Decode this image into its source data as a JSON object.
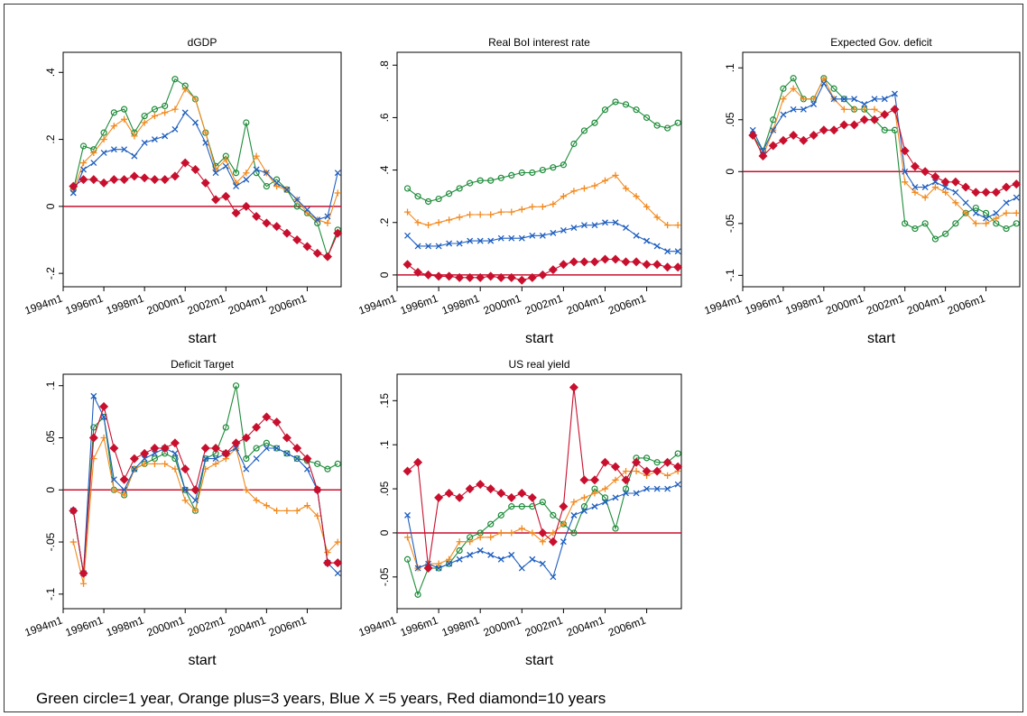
{
  "note": "Green circle=1 year, Orange plus=3 years, Blue X =5 years, Red diamond=10 years",
  "chart_data": [
    {
      "type": "line",
      "title": "dGDP",
      "xlabel": "start",
      "x": [
        "1994m7",
        "1995m1",
        "1995m7",
        "1996m1",
        "1996m7",
        "1997m1",
        "1997m7",
        "1998m1",
        "1998m7",
        "1999m1",
        "1999m7",
        "2000m1",
        "2000m7",
        "2001m1",
        "2001m7",
        "2002m1",
        "2002m7",
        "2003m1",
        "2003m7",
        "2004m1",
        "2004m7",
        "2005m1",
        "2005m7",
        "2006m1",
        "2006m7",
        "2007m1",
        "2007m7"
      ],
      "xlim": [
        "1994m1",
        "2007m9"
      ],
      "xticks": [
        "1994m1",
        "1996m1",
        "1998m1",
        "2000m1",
        "2002m1",
        "2004m1",
        "2006m1"
      ],
      "ylim": [
        -0.24,
        0.46
      ],
      "yticks": [
        {
          "value": -0.2,
          "label": "-.2"
        },
        0,
        {
          "value": 0.2,
          "label": ".2"
        },
        {
          "value": 0.4,
          "label": ".4"
        }
      ],
      "yline": 0,
      "yline_color": "#c8102e",
      "series": [
        {
          "color": "#1e8c3a",
          "marker": "circle",
          "values": [
            0.05,
            0.18,
            0.17,
            0.22,
            0.28,
            0.29,
            0.22,
            0.27,
            0.29,
            0.3,
            0.38,
            0.36,
            0.32,
            0.22,
            0.12,
            0.15,
            0.1,
            0.25,
            0.1,
            0.06,
            0.08,
            0.05,
            0,
            -0.02,
            -0.05,
            -0.15,
            -0.07
          ]
        },
        {
          "color": "#f28a1e",
          "marker": "plus",
          "values": [
            0.05,
            0.13,
            0.16,
            0.2,
            0.24,
            0.26,
            0.21,
            0.25,
            0.27,
            0.28,
            0.29,
            0.35,
            0.32,
            0.22,
            0.11,
            0.14,
            0.07,
            0.1,
            0.15,
            0.1,
            0.06,
            0.05,
            0.02,
            -0.02,
            -0.04,
            -0.05,
            0.04
          ]
        },
        {
          "color": "#1f5fbf",
          "marker": "x",
          "values": [
            0.04,
            0.11,
            0.13,
            0.16,
            0.17,
            0.17,
            0.15,
            0.19,
            0.2,
            0.21,
            0.23,
            0.28,
            0.25,
            0.19,
            0.1,
            0.12,
            0.06,
            0.08,
            0.11,
            0.1,
            0.07,
            0.05,
            0.02,
            -0.01,
            -0.04,
            -0.03,
            0.1
          ]
        },
        {
          "color": "#c8102e",
          "marker": "diamond",
          "values": [
            0.06,
            0.08,
            0.08,
            0.07,
            0.08,
            0.08,
            0.09,
            0.085,
            0.08,
            0.08,
            0.09,
            0.13,
            0.11,
            0.07,
            0.02,
            0.03,
            -0.02,
            0,
            -0.03,
            -0.05,
            -0.06,
            -0.08,
            -0.1,
            -0.12,
            -0.14,
            -0.15,
            -0.08
          ]
        }
      ]
    },
    {
      "type": "line",
      "title": "Real BoI interest rate",
      "xlabel": "start",
      "x": [
        "1994m7",
        "1995m1",
        "1995m7",
        "1996m1",
        "1996m7",
        "1997m1",
        "1997m7",
        "1998m1",
        "1998m7",
        "1999m1",
        "1999m7",
        "2000m1",
        "2000m7",
        "2001m1",
        "2001m7",
        "2002m1",
        "2002m7",
        "2003m1",
        "2003m7",
        "2004m1",
        "2004m7",
        "2005m1",
        "2005m7",
        "2006m1",
        "2006m7",
        "2007m1",
        "2007m7"
      ],
      "xlim": [
        "1994m1",
        "2007m9"
      ],
      "xticks": [
        "1994m1",
        "1996m1",
        "1998m1",
        "2000m1",
        "2002m1",
        "2004m1",
        "2006m1"
      ],
      "ylim": [
        -0.045,
        0.849
      ],
      "yticks": [
        0,
        {
          "value": 0.2,
          "label": ".2"
        },
        {
          "value": 0.4,
          "label": ".4"
        },
        {
          "value": 0.6,
          "label": ".6"
        },
        {
          "value": 0.8,
          "label": ".8"
        }
      ],
      "yline": 0,
      "yline_color": "#c8102e",
      "series": [
        {
          "color": "#1e8c3a",
          "marker": "circle",
          "values": [
            0.33,
            0.3,
            0.28,
            0.29,
            0.31,
            0.33,
            0.35,
            0.36,
            0.36,
            0.37,
            0.38,
            0.39,
            0.39,
            0.4,
            0.41,
            0.42,
            0.5,
            0.55,
            0.58,
            0.63,
            0.66,
            0.65,
            0.63,
            0.6,
            0.57,
            0.56,
            0.58
          ]
        },
        {
          "color": "#f28a1e",
          "marker": "plus",
          "values": [
            0.24,
            0.2,
            0.19,
            0.2,
            0.21,
            0.22,
            0.23,
            0.23,
            0.23,
            0.24,
            0.24,
            0.25,
            0.26,
            0.26,
            0.27,
            0.3,
            0.32,
            0.33,
            0.34,
            0.36,
            0.38,
            0.33,
            0.3,
            0.26,
            0.22,
            0.19,
            0.19
          ]
        },
        {
          "color": "#1f5fbf",
          "marker": "x",
          "values": [
            0.15,
            0.11,
            0.11,
            0.11,
            0.12,
            0.12,
            0.13,
            0.13,
            0.13,
            0.14,
            0.14,
            0.14,
            0.15,
            0.15,
            0.16,
            0.17,
            0.18,
            0.19,
            0.19,
            0.2,
            0.2,
            0.18,
            0.15,
            0.13,
            0.11,
            0.09,
            0.09
          ]
        },
        {
          "color": "#c8102e",
          "marker": "diamond",
          "values": [
            0.04,
            0.01,
            0,
            -0.005,
            -0.005,
            -0.01,
            -0.01,
            -0.01,
            -0.005,
            -0.01,
            -0.01,
            -0.02,
            -0.01,
            0,
            0.02,
            0.04,
            0.05,
            0.05,
            0.05,
            0.06,
            0.06,
            0.05,
            0.05,
            0.04,
            0.04,
            0.03,
            0.03
          ]
        }
      ]
    },
    {
      "type": "line",
      "title": "Expected Gov. deficit",
      "xlabel": "start",
      "x": [
        "1994m7",
        "1995m1",
        "1995m7",
        "1996m1",
        "1996m7",
        "1997m1",
        "1997m7",
        "1998m1",
        "1998m7",
        "1999m1",
        "1999m7",
        "2000m1",
        "2000m7",
        "2001m1",
        "2001m7",
        "2002m1",
        "2002m7",
        "2003m1",
        "2003m7",
        "2004m1",
        "2004m7",
        "2005m1",
        "2005m7",
        "2006m1",
        "2006m7",
        "2007m1",
        "2007m7"
      ],
      "xlim": [
        "1994m1",
        "2007m9"
      ],
      "xticks": [
        "1994m1",
        "1996m1",
        "1998m1",
        "2000m1",
        "2002m1",
        "2004m1",
        "2006m1"
      ],
      "ylim": [
        -0.111,
        0.115
      ],
      "yticks": [
        {
          "value": -0.1,
          "label": "-.1"
        },
        {
          "value": -0.05,
          "label": "-.05"
        },
        0,
        {
          "value": 0.05,
          "label": ".05"
        },
        {
          "value": 0.1,
          "label": ".1"
        }
      ],
      "yline": 0,
      "yline_color": "#c8102e",
      "series": [
        {
          "color": "#1e8c3a",
          "marker": "circle",
          "values": [
            0.035,
            0.02,
            0.05,
            0.08,
            0.09,
            0.07,
            0.07,
            0.09,
            0.08,
            0.07,
            0.06,
            0.06,
            0.05,
            0.04,
            0.04,
            -0.05,
            -0.055,
            -0.05,
            -0.065,
            -0.06,
            -0.05,
            -0.04,
            -0.035,
            -0.04,
            -0.05,
            -0.055,
            -0.05
          ]
        },
        {
          "color": "#f28a1e",
          "marker": "plus",
          "values": [
            0.035,
            0.015,
            0.04,
            0.07,
            0.08,
            0.07,
            0.07,
            0.09,
            0.07,
            0.06,
            0.06,
            0.06,
            0.06,
            0.055,
            0.06,
            -0.01,
            -0.02,
            -0.025,
            -0.015,
            -0.02,
            -0.03,
            -0.04,
            -0.05,
            -0.05,
            -0.045,
            -0.04,
            -0.04
          ]
        },
        {
          "color": "#1f5fbf",
          "marker": "x",
          "values": [
            0.04,
            0.02,
            0.04,
            0.055,
            0.06,
            0.06,
            0.065,
            0.085,
            0.07,
            0.07,
            0.07,
            0.065,
            0.07,
            0.07,
            0.075,
            0,
            -0.015,
            -0.015,
            -0.01,
            -0.015,
            -0.02,
            -0.03,
            -0.04,
            -0.045,
            -0.04,
            -0.03,
            -0.025
          ]
        },
        {
          "color": "#c8102e",
          "marker": "diamond",
          "values": [
            0.035,
            0.015,
            0.025,
            0.03,
            0.035,
            0.03,
            0.035,
            0.04,
            0.04,
            0.045,
            0.045,
            0.05,
            0.05,
            0.055,
            0.06,
            0.02,
            0.005,
            0,
            -0.005,
            -0.01,
            -0.01,
            -0.015,
            -0.02,
            -0.02,
            -0.02,
            -0.015,
            -0.012
          ]
        }
      ]
    },
    {
      "type": "line",
      "title": "Deficit Target",
      "xlabel": "start",
      "x": [
        "1994m7",
        "1995m1",
        "1995m7",
        "1996m1",
        "1996m7",
        "1997m1",
        "1997m7",
        "1998m1",
        "1998m7",
        "1999m1",
        "1999m7",
        "2000m1",
        "2000m7",
        "2001m1",
        "2001m7",
        "2002m1",
        "2002m7",
        "2003m1",
        "2003m7",
        "2004m1",
        "2004m7",
        "2005m1",
        "2005m7",
        "2006m1",
        "2006m7",
        "2007m1",
        "2007m7"
      ],
      "xlim": [
        "1994m1",
        "2007m9"
      ],
      "xticks": [
        "1994m1",
        "1996m1",
        "1998m1",
        "2000m1",
        "2002m1",
        "2004m1",
        "2006m1"
      ],
      "ylim": [
        -0.114,
        0.111
      ],
      "yticks": [
        {
          "value": -0.1,
          "label": "-.1"
        },
        {
          "value": -0.05,
          "label": "-.05"
        },
        0,
        {
          "value": 0.05,
          "label": ".05"
        },
        {
          "value": 0.1,
          "label": ".1"
        }
      ],
      "yline": 0,
      "yline_color": "#c8102e",
      "series": [
        {
          "color": "#1e8c3a",
          "marker": "circle",
          "values": [
            -0.02,
            -0.08,
            0.06,
            0.07,
            0,
            -0.005,
            0.02,
            0.025,
            0.03,
            0.035,
            0.03,
            0,
            -0.02,
            0.03,
            0.035,
            0.06,
            0.1,
            0.03,
            0.04,
            0.045,
            0.04,
            0.035,
            0.03,
            0.028,
            0.025,
            0.02,
            0.025
          ]
        },
        {
          "color": "#f28a1e",
          "marker": "plus",
          "values": [
            -0.05,
            -0.09,
            0.03,
            0.05,
            0,
            -0.005,
            0.02,
            0.025,
            0.025,
            0.025,
            0.02,
            -0.01,
            -0.02,
            0.02,
            0.025,
            0.03,
            0.04,
            0,
            -0.01,
            -0.015,
            -0.02,
            -0.02,
            -0.02,
            -0.015,
            -0.025,
            -0.06,
            -0.05
          ]
        },
        {
          "color": "#1f5fbf",
          "marker": "x",
          "values": [
            -0.02,
            -0.08,
            0.09,
            0.07,
            0.01,
            0,
            0.02,
            0.03,
            0.035,
            0.04,
            0.035,
            0,
            -0.01,
            0.03,
            0.03,
            0.035,
            0.04,
            0.02,
            0.03,
            0.04,
            0.04,
            0.035,
            0.03,
            0.02,
            0,
            -0.07,
            -0.08
          ]
        },
        {
          "color": "#c8102e",
          "marker": "diamond",
          "values": [
            -0.02,
            -0.08,
            0.05,
            0.08,
            0.04,
            0.01,
            0.03,
            0.035,
            0.04,
            0.04,
            0.045,
            0.02,
            0,
            0.04,
            0.04,
            0.035,
            0.045,
            0.05,
            0.06,
            0.07,
            0.065,
            0.05,
            0.04,
            0.03,
            0,
            -0.07,
            -0.07
          ]
        }
      ]
    },
    {
      "type": "line",
      "title": "US real yield",
      "xlabel": "start",
      "x": [
        "1994m7",
        "1995m1",
        "1995m7",
        "1996m1",
        "1996m7",
        "1997m1",
        "1997m7",
        "1998m1",
        "1998m7",
        "1999m1",
        "1999m7",
        "2000m1",
        "2000m7",
        "2001m1",
        "2001m7",
        "2002m1",
        "2002m7",
        "2003m1",
        "2003m7",
        "2004m1",
        "2004m7",
        "2005m1",
        "2005m7",
        "2006m1",
        "2006m7",
        "2007m1",
        "2007m7"
      ],
      "xlim": [
        "1994m1",
        "2007m9"
      ],
      "xticks": [
        "1994m1",
        "1996m1",
        "1998m1",
        "2000m1",
        "2002m1",
        "2004m1",
        "2006m1"
      ],
      "ylim": [
        -0.086,
        0.18
      ],
      "yticks": [
        {
          "value": -0.05,
          "label": "-.05"
        },
        0,
        {
          "value": 0.05,
          "label": ".05"
        },
        {
          "value": 0.1,
          "label": ".1"
        },
        {
          "value": 0.15,
          "label": ".15"
        }
      ],
      "yline": 0,
      "yline_color": "#c8102e",
      "series": [
        {
          "color": "#1e8c3a",
          "marker": "circle",
          "values": [
            -0.03,
            -0.07,
            -0.04,
            -0.04,
            -0.035,
            -0.02,
            -0.005,
            0,
            0.01,
            0.02,
            0.03,
            0.03,
            0.03,
            0.035,
            0.02,
            0.01,
            0,
            0.03,
            0.05,
            0.04,
            0.005,
            0.05,
            0.085,
            0.085,
            0.08,
            0.08,
            0.09
          ]
        },
        {
          "color": "#f28a1e",
          "marker": "plus",
          "values": [
            -0.005,
            -0.04,
            -0.035,
            -0.035,
            -0.03,
            -0.01,
            -0.01,
            -0.005,
            -0.005,
            0,
            0,
            0.005,
            0,
            -0.01,
            0,
            0.01,
            0.035,
            0.04,
            0.045,
            0.05,
            0.06,
            0.07,
            0.07,
            0.065,
            0.07,
            0.065,
            0.07
          ]
        },
        {
          "color": "#1f5fbf",
          "marker": "x",
          "values": [
            0.02,
            -0.04,
            -0.035,
            -0.04,
            -0.035,
            -0.03,
            -0.025,
            -0.02,
            -0.025,
            -0.03,
            -0.025,
            -0.04,
            -0.03,
            -0.035,
            -0.05,
            -0.01,
            0.02,
            0.025,
            0.03,
            0.035,
            0.04,
            0.045,
            0.045,
            0.05,
            0.05,
            0.05,
            0.055
          ]
        },
        {
          "color": "#c8102e",
          "marker": "diamond",
          "values": [
            0.07,
            0.08,
            -0.04,
            0.04,
            0.045,
            0.04,
            0.05,
            0.055,
            0.05,
            0.045,
            0.04,
            0.045,
            0.04,
            0,
            -0.01,
            0.03,
            0.165,
            0.06,
            0.06,
            0.08,
            0.075,
            0.06,
            0.08,
            0.07,
            0.07,
            0.08,
            0.075
          ]
        }
      ]
    }
  ]
}
